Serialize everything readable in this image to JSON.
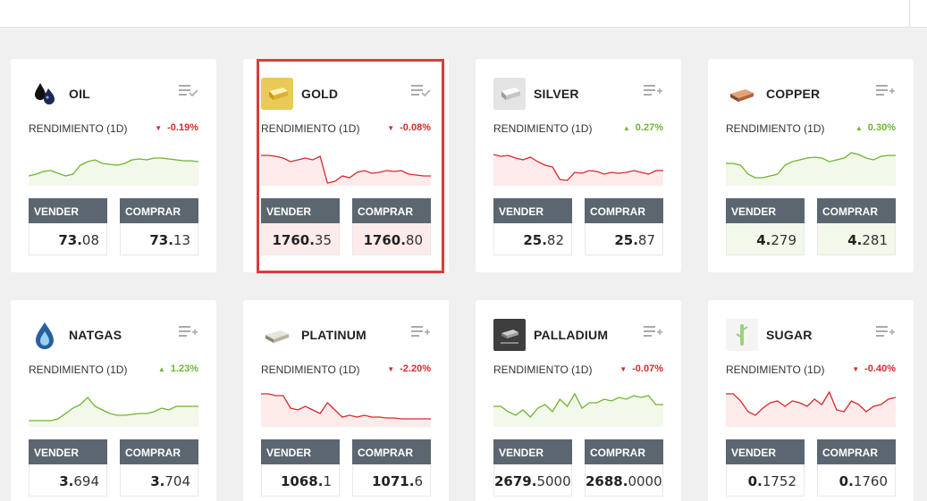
{
  "perf_label": "RENDIMIENTO (1D)",
  "sell_label": "VENDER",
  "buy_label": "COMPRAR",
  "colors": {
    "up": "#6eb52d",
    "down": "#d62a2a",
    "up_fill": "#f2f8ea",
    "down_fill": "#fdebec",
    "header": "#5b6670"
  },
  "cards": [
    {
      "name": "OIL",
      "icon": "oil-drops-icon",
      "watch_icon": "watchlist-check-icon",
      "change": "-0.19%",
      "dir": "down",
      "trend": "up",
      "sell": {
        "main": "73.",
        "tail": "08"
      },
      "buy": {
        "main": "73.",
        "tail": "13"
      },
      "highlight_prices": false,
      "selected": false,
      "spark": [
        30,
        28,
        25,
        24,
        27,
        30,
        28,
        18,
        14,
        12,
        16,
        17,
        18,
        16,
        12,
        11,
        12,
        10,
        10,
        11,
        12,
        13,
        13,
        14
      ]
    },
    {
      "name": "GOLD",
      "icon": "gold-bar-icon",
      "watch_icon": "watchlist-check-icon",
      "change": "-0.08%",
      "dir": "down",
      "trend": "down",
      "sell": {
        "main": "1760.",
        "tail": "35"
      },
      "buy": {
        "main": "1760.",
        "tail": "80"
      },
      "highlight_prices": true,
      "selected": true,
      "spark": [
        7,
        7,
        8,
        10,
        14,
        12,
        10,
        12,
        8,
        38,
        36,
        30,
        32,
        26,
        24,
        27,
        26,
        24,
        25,
        24,
        28,
        29,
        30,
        30
      ]
    },
    {
      "name": "SILVER",
      "icon": "silver-bar-icon",
      "watch_icon": "watchlist-add-icon",
      "change": "0.27%",
      "dir": "up",
      "trend": "down",
      "sell": {
        "main": "25.",
        "tail": "82"
      },
      "buy": {
        "main": "25.",
        "tail": "87"
      },
      "highlight_prices": false,
      "selected": false,
      "spark": [
        6,
        8,
        7,
        10,
        12,
        9,
        14,
        18,
        20,
        34,
        35,
        26,
        27,
        24,
        25,
        28,
        26,
        27,
        26,
        24,
        26,
        28,
        24,
        24
      ]
    },
    {
      "name": "COPPER",
      "icon": "copper-bar-icon",
      "watch_icon": "watchlist-add-icon",
      "change": "0.30%",
      "dir": "up",
      "trend": "up",
      "sell": {
        "main": "4.",
        "tail": "279"
      },
      "buy": {
        "main": "4.",
        "tail": "281"
      },
      "highlight_prices": true,
      "selected": false,
      "spark": [
        16,
        16,
        18,
        28,
        32,
        32,
        30,
        28,
        18,
        14,
        12,
        10,
        9,
        10,
        14,
        12,
        10,
        4,
        6,
        10,
        12,
        8,
        7,
        7
      ]
    },
    {
      "name": "NATGAS",
      "icon": "flame-drop-icon",
      "watch_icon": "watchlist-add-icon",
      "change": "1.23%",
      "dir": "up",
      "trend": "up",
      "sell": {
        "main": "3.",
        "tail": "694"
      },
      "buy": {
        "main": "3.",
        "tail": "704"
      },
      "highlight_prices": false,
      "selected": false,
      "spark": [
        34,
        34,
        34,
        34,
        32,
        26,
        20,
        16,
        8,
        18,
        22,
        26,
        28,
        28,
        27,
        26,
        26,
        24,
        20,
        22,
        18,
        18,
        18,
        18
      ]
    },
    {
      "name": "PLATINUM",
      "icon": "platinum-bar-icon",
      "watch_icon": "watchlist-add-icon",
      "change": "-2.20%",
      "dir": "down",
      "trend": "down",
      "sell": {
        "main": "1068.",
        "tail": "1"
      },
      "buy": {
        "main": "1071.",
        "tail": "6"
      },
      "highlight_prices": false,
      "selected": false,
      "spark": [
        4,
        4,
        6,
        6,
        20,
        22,
        18,
        22,
        26,
        14,
        22,
        30,
        28,
        30,
        28,
        30,
        30,
        31,
        31,
        32,
        32,
        32,
        32,
        32
      ]
    },
    {
      "name": "PALLADIUM",
      "icon": "palladium-bar-icon",
      "watch_icon": "watchlist-add-icon",
      "change": "-0.07%",
      "dir": "down",
      "trend": "up",
      "sell": {
        "main": "2679.",
        "tail": "5000"
      },
      "buy": {
        "main": "2688.",
        "tail": "0000"
      },
      "highlight_prices": false,
      "selected": false,
      "spark": [
        18,
        18,
        24,
        28,
        22,
        30,
        20,
        16,
        24,
        10,
        18,
        4,
        20,
        14,
        14,
        10,
        12,
        8,
        10,
        6,
        8,
        6,
        16,
        16
      ]
    },
    {
      "name": "SUGAR",
      "icon": "sugar-cane-icon",
      "watch_icon": "watchlist-add-icon",
      "change": "-0.40%",
      "dir": "down",
      "trend": "down",
      "sell": {
        "main": "0.",
        "tail": "1752"
      },
      "buy": {
        "main": "0.",
        "tail": "1760"
      },
      "highlight_prices": false,
      "selected": false,
      "spark": [
        4,
        4,
        12,
        24,
        28,
        20,
        14,
        12,
        18,
        12,
        14,
        18,
        10,
        16,
        2,
        22,
        24,
        12,
        16,
        24,
        18,
        16,
        10,
        8
      ]
    }
  ]
}
